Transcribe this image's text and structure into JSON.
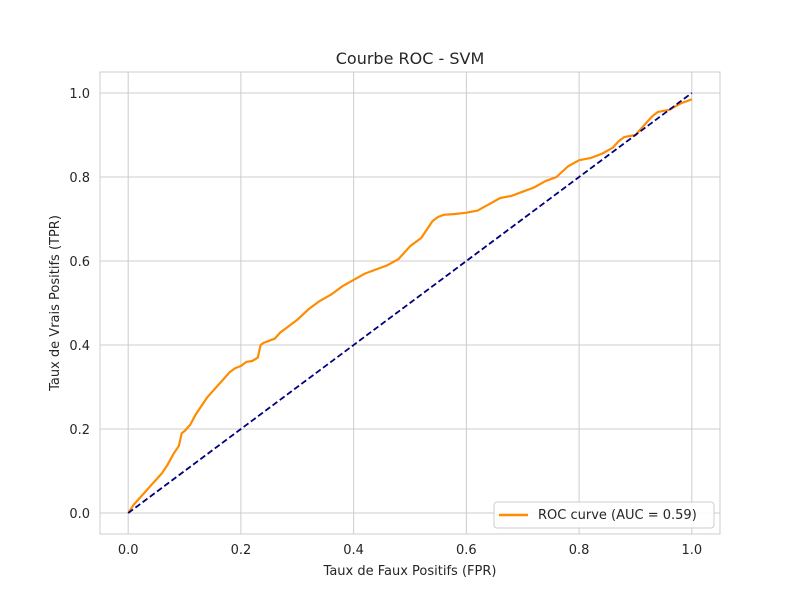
{
  "chart_data": {
    "type": "line",
    "title": "Courbe ROC - SVM",
    "xlabel": "Taux de Faux Positifs (FPR)",
    "ylabel": "Taux de Vrais Positifs (TPR)",
    "xlim": [
      -0.05,
      1.05
    ],
    "ylim": [
      -0.05,
      1.05
    ],
    "xticks": [
      0.0,
      0.2,
      0.4,
      0.6,
      0.8,
      1.0
    ],
    "yticks": [
      0.0,
      0.2,
      0.4,
      0.6,
      0.8,
      1.0
    ],
    "xtick_labels": [
      "0.0",
      "0.2",
      "0.4",
      "0.6",
      "0.8",
      "1.0"
    ],
    "ytick_labels": [
      "0.0",
      "0.2",
      "0.4",
      "0.6",
      "0.8",
      "1.0"
    ],
    "grid": true,
    "legend_position": "lower-right",
    "series": [
      {
        "name": "ROC curve (AUC = 0.59)",
        "color": "#ff8c00",
        "style": "solid",
        "x": [
          0.0,
          0.005,
          0.01,
          0.02,
          0.03,
          0.04,
          0.05,
          0.06,
          0.07,
          0.08,
          0.09,
          0.095,
          0.1,
          0.11,
          0.12,
          0.13,
          0.14,
          0.15,
          0.16,
          0.17,
          0.18,
          0.19,
          0.2,
          0.21,
          0.22,
          0.23,
          0.235,
          0.24,
          0.25,
          0.26,
          0.27,
          0.28,
          0.29,
          0.3,
          0.32,
          0.34,
          0.36,
          0.38,
          0.4,
          0.42,
          0.44,
          0.46,
          0.48,
          0.5,
          0.51,
          0.52,
          0.53,
          0.54,
          0.55,
          0.56,
          0.58,
          0.6,
          0.62,
          0.64,
          0.66,
          0.68,
          0.7,
          0.72,
          0.74,
          0.76,
          0.78,
          0.8,
          0.82,
          0.84,
          0.86,
          0.87,
          0.88,
          0.9,
          0.92,
          0.93,
          0.94,
          0.96,
          0.98,
          1.0
        ],
        "y": [
          0.0,
          0.01,
          0.02,
          0.035,
          0.05,
          0.065,
          0.08,
          0.095,
          0.115,
          0.14,
          0.16,
          0.19,
          0.195,
          0.21,
          0.235,
          0.255,
          0.275,
          0.29,
          0.305,
          0.32,
          0.335,
          0.345,
          0.35,
          0.36,
          0.362,
          0.37,
          0.4,
          0.405,
          0.41,
          0.415,
          0.43,
          0.44,
          0.45,
          0.46,
          0.485,
          0.505,
          0.52,
          0.54,
          0.555,
          0.57,
          0.58,
          0.59,
          0.605,
          0.635,
          0.645,
          0.655,
          0.675,
          0.695,
          0.705,
          0.71,
          0.712,
          0.715,
          0.72,
          0.735,
          0.75,
          0.755,
          0.765,
          0.775,
          0.79,
          0.8,
          0.825,
          0.84,
          0.845,
          0.855,
          0.87,
          0.885,
          0.895,
          0.9,
          0.93,
          0.945,
          0.955,
          0.96,
          0.975,
          0.985
        ]
      },
      {
        "name": "",
        "color": "#000080",
        "style": "dashed",
        "x": [
          0.0,
          1.0
        ],
        "y": [
          0.0,
          1.0
        ]
      }
    ]
  },
  "legend": {
    "label": "ROC curve (AUC = 0.59)"
  }
}
